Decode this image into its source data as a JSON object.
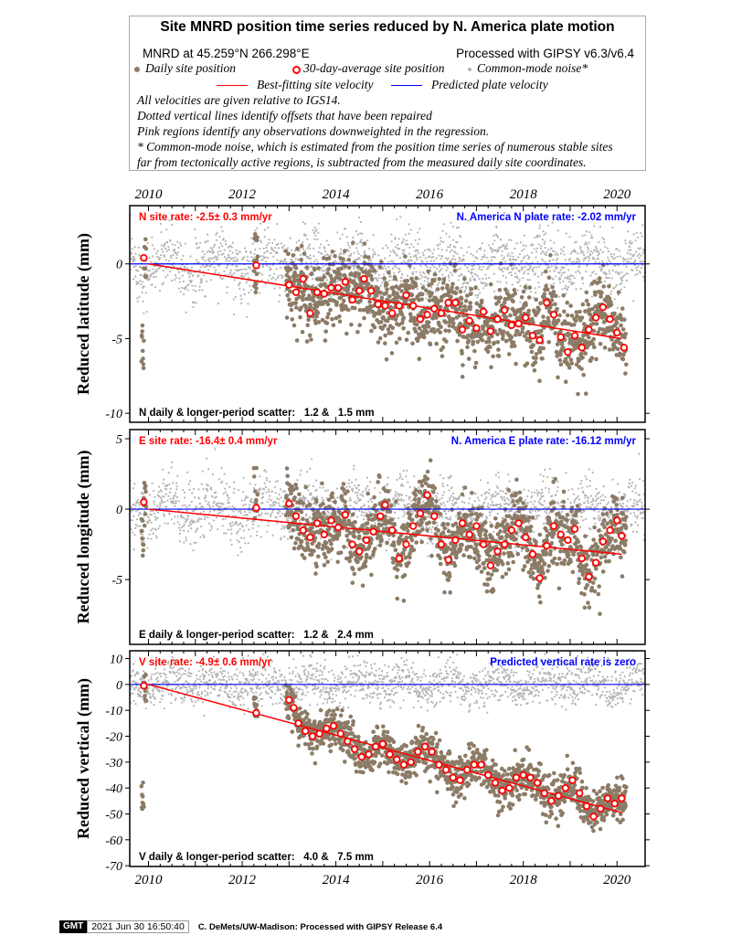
{
  "legend": {
    "title": "Site MNRD position time series reduced by N. America plate motion",
    "location": "MNRD at 45.259°N 266.298°E",
    "processing": "Processed with GIPSY v6.3/v6.4",
    "daily": "Daily site position",
    "avg": "30-day-average site position",
    "cmn": "Common-mode noise*",
    "bestfit": "Best-fitting site velocity",
    "plate": "Predicted plate velocity",
    "notes": [
      "All velocities are given relative to IGS14.",
      "Dotted vertical lines identify offsets that have been repaired",
      "Pink regions identify any observations downweighted in the regression.",
      "* Common-mode noise, which is estimated from the position time series of numerous stable sites",
      "far from tectonically active regions, is subtracted from the measured daily site coordinates."
    ]
  },
  "colors": {
    "daily": "#8c7b66",
    "cmn": "#b4b4b4",
    "avg": "#ff0000",
    "fit": "#ff0000",
    "plate": "#0000ff"
  },
  "footer": {
    "logo": "GMT",
    "timestamp": "2021 Jun 30 16:50:40",
    "credit": "C. DeMets/UW-Madison: Processed with GIPSY Release 6.4"
  },
  "chart_data": [
    {
      "type": "scatter",
      "component": "N",
      "ylabel": "Reduced latitude (mm)",
      "site_rate": "N site rate:  -2.5± 0.3 mm/yr",
      "plate_rate": "N. America N plate rate: -2.02 mm/yr",
      "scatter": "N daily & longer-period scatter:   1.2 &   1.5 mm",
      "xlim": [
        2009.6,
        2020.6
      ],
      "ylim": [
        -10.6,
        3.9
      ],
      "yticks": [
        0,
        -5,
        -10
      ],
      "xticks": [
        2010,
        2012,
        2014,
        2016,
        2018,
        2020
      ],
      "fit": [
        [
          2010.0,
          0
        ],
        [
          2020.1,
          -5.0
        ]
      ],
      "daily_sd": 1.2,
      "avg": [
        [
          2009.9,
          0.4
        ],
        [
          2012.3,
          -0.1
        ],
        [
          2013.0,
          -1.4
        ],
        [
          2013.15,
          -1.9
        ],
        [
          2013.3,
          -1.0
        ],
        [
          2013.45,
          -3.3
        ],
        [
          2013.6,
          -1.9
        ],
        [
          2013.75,
          -2.0
        ],
        [
          2013.9,
          -1.6
        ],
        [
          2014.05,
          -1.6
        ],
        [
          2014.2,
          -1.2
        ],
        [
          2014.35,
          -2.4
        ],
        [
          2014.5,
          -1.8
        ],
        [
          2014.6,
          -1.0
        ],
        [
          2014.75,
          -1.8
        ],
        [
          2014.9,
          -2.7
        ],
        [
          2015.05,
          -2.8
        ],
        [
          2015.2,
          -3.3
        ],
        [
          2015.35,
          -2.8
        ],
        [
          2015.5,
          -2.1
        ],
        [
          2015.65,
          -2.8
        ],
        [
          2015.8,
          -3.7
        ],
        [
          2015.95,
          -3.4
        ],
        [
          2016.1,
          -3.0
        ],
        [
          2016.25,
          -3.3
        ],
        [
          2016.4,
          -2.6
        ],
        [
          2016.55,
          -2.6
        ],
        [
          2016.7,
          -4.4
        ],
        [
          2016.85,
          -3.8
        ],
        [
          2017.0,
          -4.3
        ],
        [
          2017.15,
          -3.2
        ],
        [
          2017.3,
          -4.5
        ],
        [
          2017.45,
          -3.7
        ],
        [
          2017.6,
          -3.1
        ],
        [
          2017.75,
          -4.1
        ],
        [
          2017.9,
          -4.0
        ],
        [
          2018.05,
          -3.6
        ],
        [
          2018.2,
          -4.8
        ],
        [
          2018.35,
          -5.1
        ],
        [
          2018.5,
          -2.6
        ],
        [
          2018.65,
          -3.4
        ],
        [
          2018.8,
          -4.9
        ],
        [
          2018.95,
          -5.9
        ],
        [
          2019.1,
          -4.8
        ],
        [
          2019.25,
          -5.6
        ],
        [
          2019.4,
          -4.4
        ],
        [
          2019.55,
          -3.6
        ],
        [
          2019.7,
          -2.9
        ],
        [
          2019.85,
          -3.7
        ],
        [
          2020.0,
          -4.6
        ],
        [
          2020.15,
          -5.6
        ]
      ]
    },
    {
      "type": "scatter",
      "component": "E",
      "ylabel": "Reduced longitude (mm)",
      "site_rate": "E site rate: -16.4± 0.4 mm/yr",
      "plate_rate": "N. America E plate rate: -16.12 mm/yr",
      "scatter": "E daily & longer-period scatter:   1.2 &   2.4 mm",
      "xlim": [
        2009.6,
        2020.6
      ],
      "ylim": [
        -9.6,
        5.65
      ],
      "yticks": [
        5,
        0,
        -5
      ],
      "xticks": [
        2010,
        2012,
        2014,
        2016,
        2018,
        2020
      ],
      "fit": [
        [
          2010.0,
          0
        ],
        [
          2020.1,
          -3.2
        ]
      ],
      "daily_sd": 1.2,
      "avg": [
        [
          2009.9,
          0.5
        ],
        [
          2012.3,
          0.1
        ],
        [
          2013.0,
          0.4
        ],
        [
          2013.15,
          -0.5
        ],
        [
          2013.3,
          -1.5
        ],
        [
          2013.45,
          -2.0
        ],
        [
          2013.6,
          -1.0
        ],
        [
          2013.75,
          -1.8
        ],
        [
          2013.9,
          -0.8
        ],
        [
          2014.05,
          -1.3
        ],
        [
          2014.2,
          -0.4
        ],
        [
          2014.35,
          -2.5
        ],
        [
          2014.5,
          -3.0
        ],
        [
          2014.65,
          -2.2
        ],
        [
          2014.8,
          -1.6
        ],
        [
          2014.95,
          -0.5
        ],
        [
          2015.05,
          0.3
        ],
        [
          2015.2,
          -1.5
        ],
        [
          2015.35,
          -3.5
        ],
        [
          2015.5,
          -2.5
        ],
        [
          2015.65,
          -1.2
        ],
        [
          2015.8,
          -0.3
        ],
        [
          2015.95,
          1.0
        ],
        [
          2016.1,
          -0.5
        ],
        [
          2016.25,
          -2.5
        ],
        [
          2016.4,
          -3.6
        ],
        [
          2016.55,
          -2.2
        ],
        [
          2016.7,
          -1.0
        ],
        [
          2016.85,
          -1.8
        ],
        [
          2017.0,
          -1.2
        ],
        [
          2017.15,
          -2.5
        ],
        [
          2017.3,
          -4.0
        ],
        [
          2017.45,
          -3.0
        ],
        [
          2017.6,
          -2.5
        ],
        [
          2017.75,
          -1.5
        ],
        [
          2017.9,
          -1.0
        ],
        [
          2018.05,
          -2.0
        ],
        [
          2018.2,
          -3.2
        ],
        [
          2018.35,
          -4.9
        ],
        [
          2018.5,
          -2.6
        ],
        [
          2018.65,
          -1.2
        ],
        [
          2018.8,
          -1.8
        ],
        [
          2018.95,
          -2.2
        ],
        [
          2019.1,
          -1.4
        ],
        [
          2019.25,
          -3.5
        ],
        [
          2019.4,
          -4.8
        ],
        [
          2019.55,
          -3.8
        ],
        [
          2019.7,
          -2.3
        ],
        [
          2019.85,
          -1.5
        ],
        [
          2020.0,
          -0.8
        ],
        [
          2020.1,
          -1.9
        ]
      ]
    },
    {
      "type": "scatter",
      "component": "V",
      "ylabel": "Reduced vertical (mm)",
      "site_rate": "V site rate:  -4.9± 0.6 mm/yr",
      "plate_rate": "Predicted vertical rate is zero",
      "scatter": "V daily & longer-period scatter:   4.0 &   7.5 mm",
      "xlim": [
        2009.6,
        2020.6
      ],
      "ylim": [
        -70.3,
        13
      ],
      "yticks": [
        10,
        0,
        -10,
        -20,
        -30,
        -40,
        -50,
        -60,
        -70
      ],
      "xticks": [
        2010,
        2012,
        2014,
        2016,
        2018,
        2020
      ],
      "fit": [
        [
          2010.0,
          0
        ],
        [
          2020.1,
          -49.5
        ]
      ],
      "daily_sd": 4.0,
      "avg": [
        [
          2009.9,
          -0.5
        ],
        [
          2012.3,
          -11
        ],
        [
          2013.0,
          -6
        ],
        [
          2013.1,
          -9
        ],
        [
          2013.2,
          -15
        ],
        [
          2013.35,
          -18
        ],
        [
          2013.5,
          -20
        ],
        [
          2013.65,
          -19
        ],
        [
          2013.8,
          -17
        ],
        [
          2013.95,
          -16
        ],
        [
          2014.1,
          -19
        ],
        [
          2014.25,
          -22
        ],
        [
          2014.4,
          -25
        ],
        [
          2014.55,
          -28
        ],
        [
          2014.7,
          -27
        ],
        [
          2014.85,
          -24
        ],
        [
          2015.0,
          -23
        ],
        [
          2015.15,
          -27
        ],
        [
          2015.3,
          -29
        ],
        [
          2015.45,
          -31
        ],
        [
          2015.6,
          -30
        ],
        [
          2015.75,
          -26
        ],
        [
          2015.9,
          -24
        ],
        [
          2016.05,
          -26
        ],
        [
          2016.2,
          -31
        ],
        [
          2016.35,
          -33
        ],
        [
          2016.5,
          -36
        ],
        [
          2016.65,
          -37
        ],
        [
          2016.8,
          -33
        ],
        [
          2016.95,
          -31
        ],
        [
          2017.1,
          -31
        ],
        [
          2017.25,
          -35
        ],
        [
          2017.4,
          -38
        ],
        [
          2017.55,
          -41
        ],
        [
          2017.7,
          -40
        ],
        [
          2017.85,
          -36
        ],
        [
          2018.0,
          -35
        ],
        [
          2018.15,
          -36
        ],
        [
          2018.3,
          -38
        ],
        [
          2018.45,
          -42
        ],
        [
          2018.6,
          -45
        ],
        [
          2018.75,
          -43
        ],
        [
          2018.9,
          -40
        ],
        [
          2019.05,
          -37
        ],
        [
          2019.2,
          -42
        ],
        [
          2019.35,
          -47
        ],
        [
          2019.5,
          -51
        ],
        [
          2019.65,
          -48
        ],
        [
          2019.8,
          -44
        ],
        [
          2019.95,
          -46
        ],
        [
          2020.1,
          -44
        ]
      ]
    }
  ]
}
